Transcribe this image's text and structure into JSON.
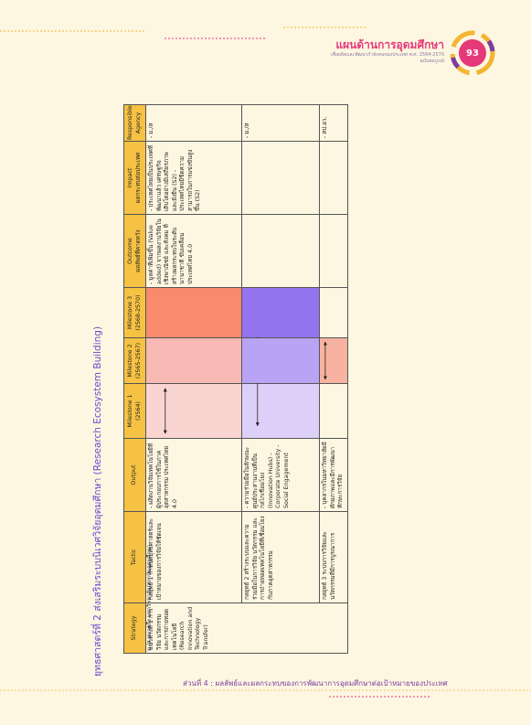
{
  "header": {
    "title": "แผนด้านการอุดมศึกษา",
    "subtitle": "เพื่อผลิตและพัฒนากำลังคนของประเทศ พ.ศ. 2564-2570",
    "subtitle2": "ฉบับสมบูรณ์",
    "page": "93"
  },
  "title": "ยุทธศาสตร์ที่ 2 ส่งเสริมระบบนิเวศวิจัยอุดมศึกษา (Research Ecosystem Building)",
  "table": {
    "columns": [
      {
        "label": "Strategy"
      },
      {
        "label": "Tactic"
      },
      {
        "label": "Output"
      },
      {
        "label": "Milestone 1",
        "sub": "(2564)"
      },
      {
        "label": "Milestone 2",
        "sub": "(2565-2567)"
      },
      {
        "label": "Milestone 3",
        "sub": "(2568-2570)"
      },
      {
        "label": "Outcome",
        "sub": "ผลลัพธ์ที่คาดหวัง"
      },
      {
        "label": "Impact",
        "sub": "ผลกระทบต่อประเทศ"
      },
      {
        "label": "Responsible Agency"
      }
    ],
    "strategy": "แนวทางที่ 1 การวิจัย นวัตกรรม และการถ่ายทอดเทคโนโลยี (Research Innovation and Technology Transfer)",
    "rows": [
      {
        "tactic": "กลยุทธ์ 1 กำหนดยุทธศาสตร์และเป้าหมายของการวิจัยให้ชัดเจน",
        "output": "- ผลิตงานวิจัยเทคโนโลยีที่ผู้ประกอบการใช้ในภาคอุตสาหกรรม ประเทศไทย 4.0",
        "outcome": "- มูลค่าที่เพิ่มขึ้น (Value added) จากผลงานวิจัยในเชิงพาณิชย์ และสังคม ที่สร้างผลกระทบในระดับนานาชาติ ขับเคลื่อนประเทศไทย 4.0",
        "impact": "- ประเทศไทยเป็นประเทศที่พัฒนาแล้ว เศรษฐกิจเติบโตอย่างมีเสถียรภาพ และยั่งยืน (S2) - ประเทศไทยมีขีดความสามารถในการแข่งขันสูงขึ้น (S2)",
        "agency": "- ม./ส"
      },
      {
        "tactic": "กลยุทธ์ 2 สร้างระบบและความร่วมมือในการวิจัย นวัตกรรม และการถ่ายทอดเทคโนโลยีที่เชื่อมโยงกับภาคอุตสาหกรรม",
        "output": "- ความร่วมมือในลักษณะศูนย์ประสานงานที่เป็นกลไกเชื่อมโยง (Innovation Hubs) - Corporate University - Social Engagement",
        "agency": "- ม./ส"
      },
      {
        "tactic": "กลยุทธ์ 3 ระบบการวิจัยและนวัตกรรมที่มีการบูรณาการ",
        "output": "- บุคลากรในมหาวิทยาลัยมีศักยภาพและมีการพัฒนาทักษะการวิจัย",
        "agency": "- สป.อว."
      }
    ]
  },
  "note": "ม./ส หมายถึง มหาวิทยาลัย/สถาบันอุดมศึกษา",
  "footer": "ส่วนที่ 4 : ผลลัพธ์และผลกระทบของการพัฒนาการอุดมศึกษาต่อเป้าหมายของประเทศ"
}
